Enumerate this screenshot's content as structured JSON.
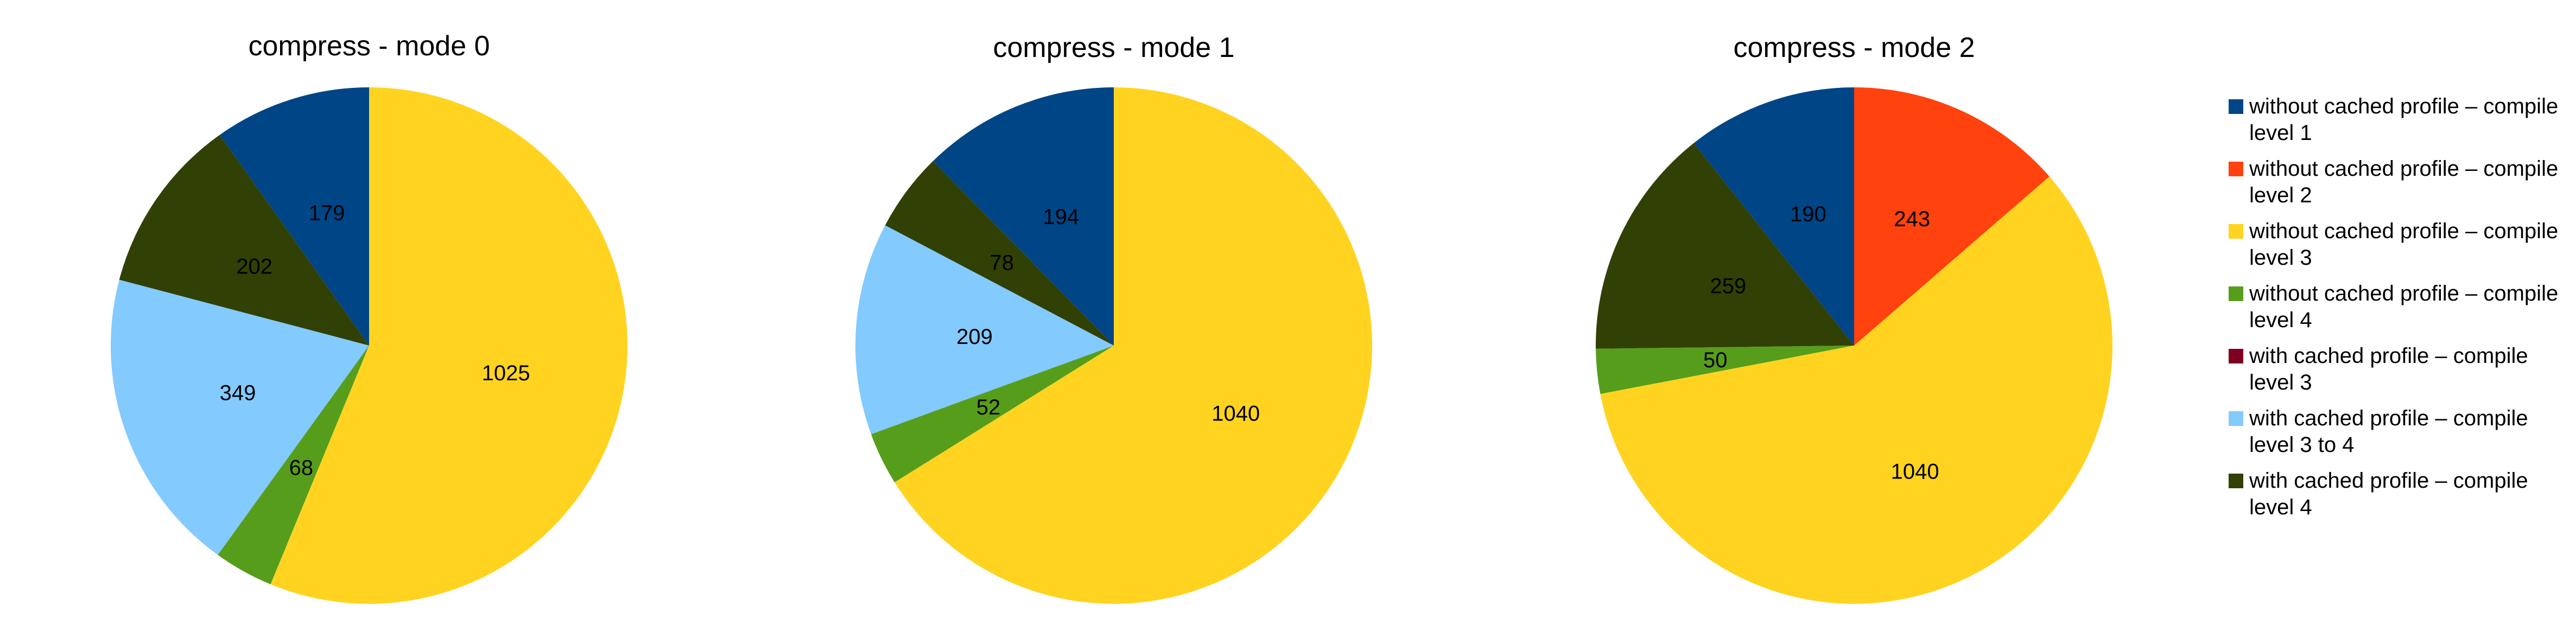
{
  "chart_data": [
    {
      "type": "pie",
      "title": "compress - mode 0",
      "labels": [
        "without cached profile – compile level 1",
        "with cached profile – compile level 4",
        "with cached profile – compile level 3 to 4",
        "without cached profile – compile level 4",
        "without cached profile – compile level 3"
      ],
      "values": [
        179,
        202,
        349,
        68,
        1025
      ],
      "data_labels": [
        "179",
        "202",
        "349",
        "68",
        "1025"
      ],
      "colors": [
        "#004586",
        "#314004",
        "#83CAFF",
        "#579D1C",
        "#FFD320"
      ],
      "start_angle": "12 o'clock",
      "direction": "counter-clockwise"
    },
    {
      "type": "pie",
      "title": "compress - mode 1",
      "labels": [
        "without cached profile – compile level 1",
        "with cached profile – compile level 4",
        "with cached profile – compile level 3 to 4",
        "without cached profile – compile level 4",
        "without cached profile – compile level 3"
      ],
      "values": [
        194,
        78,
        209,
        52,
        1040
      ],
      "data_labels": [
        "194",
        "78",
        "209",
        "52",
        "1040"
      ],
      "colors": [
        "#004586",
        "#314004",
        "#83CAFF",
        "#579D1C",
        "#FFD320"
      ],
      "start_angle": "12 o'clock",
      "direction": "counter-clockwise"
    },
    {
      "type": "pie",
      "title": "compress - mode 2",
      "labels": [
        "without cached profile – compile level 1",
        "with cached profile – compile level 4",
        "without cached profile – compile level 4",
        "without cached profile – compile level 3",
        "without cached profile – compile level 2"
      ],
      "values": [
        190,
        259,
        50,
        1040,
        243
      ],
      "data_labels": [
        "190",
        "259",
        "50",
        "1040",
        "243"
      ],
      "colors": [
        "#004586",
        "#314004",
        "#579D1C",
        "#FFD320",
        "#FF420E"
      ],
      "start_angle": "12 o'clock",
      "direction": "counter-clockwise"
    }
  ],
  "legend": {
    "placement": "right",
    "items": [
      {
        "label": "without cached profile – compile level 1",
        "color": "#004586"
      },
      {
        "label": "without cached profile – compile level 2",
        "color": "#FF420E"
      },
      {
        "label": "without cached profile – compile level 3",
        "color": "#FFD320"
      },
      {
        "label": "without cached profile – compile level 4",
        "color": "#579D1C"
      },
      {
        "label": "with cached profile – compile level 3",
        "color": "#7E0021"
      },
      {
        "label": "with cached profile – compile level 3 to 4",
        "color": "#83CAFF"
      },
      {
        "label": "with cached profile – compile level 4",
        "color": "#314004"
      }
    ]
  }
}
